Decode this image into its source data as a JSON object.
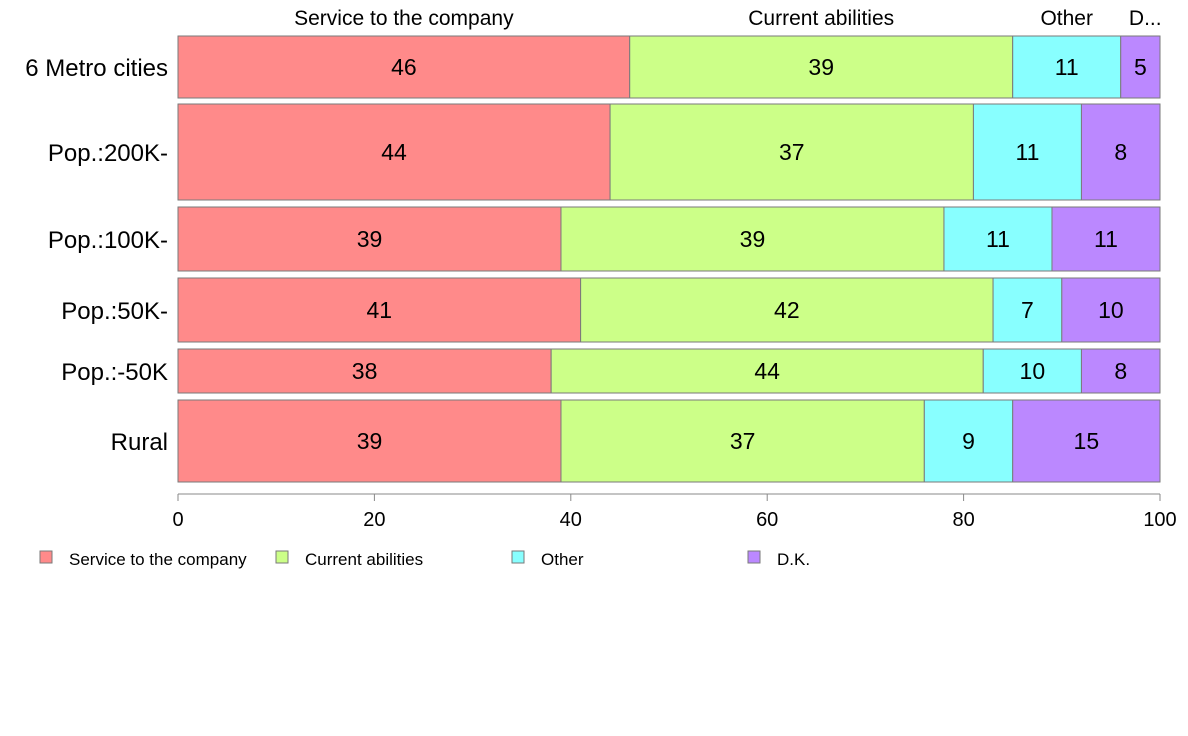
{
  "chart_data": {
    "type": "bar",
    "orientation": "horizontal",
    "stacked": true,
    "categories": [
      "6 Metro cities",
      "Pop.:200K-",
      "Pop.:100K-",
      "Pop.:50K-",
      "Pop.:-50K",
      "Rural"
    ],
    "series": [
      {
        "name": "Service to the company",
        "color": "#ff8a8a",
        "values": [
          46,
          44,
          39,
          41,
          38,
          39
        ]
      },
      {
        "name": "Current abilities",
        "color": "#ccff88",
        "values": [
          39,
          37,
          39,
          42,
          44,
          37
        ]
      },
      {
        "name": "Other",
        "color": "#88ffff",
        "values": [
          11,
          11,
          11,
          7,
          10,
          9
        ]
      },
      {
        "name": "D.K.",
        "color": "#bb88ff",
        "values": [
          5,
          8,
          11,
          10,
          8,
          15
        ]
      }
    ],
    "top_labels": [
      "Service to the company",
      "Current abilities",
      "Other",
      "D..."
    ],
    "xlim": [
      0,
      100
    ],
    "xticks": [
      0,
      20,
      40,
      60,
      80,
      100
    ],
    "legend_position": "bottom",
    "grid": false
  }
}
